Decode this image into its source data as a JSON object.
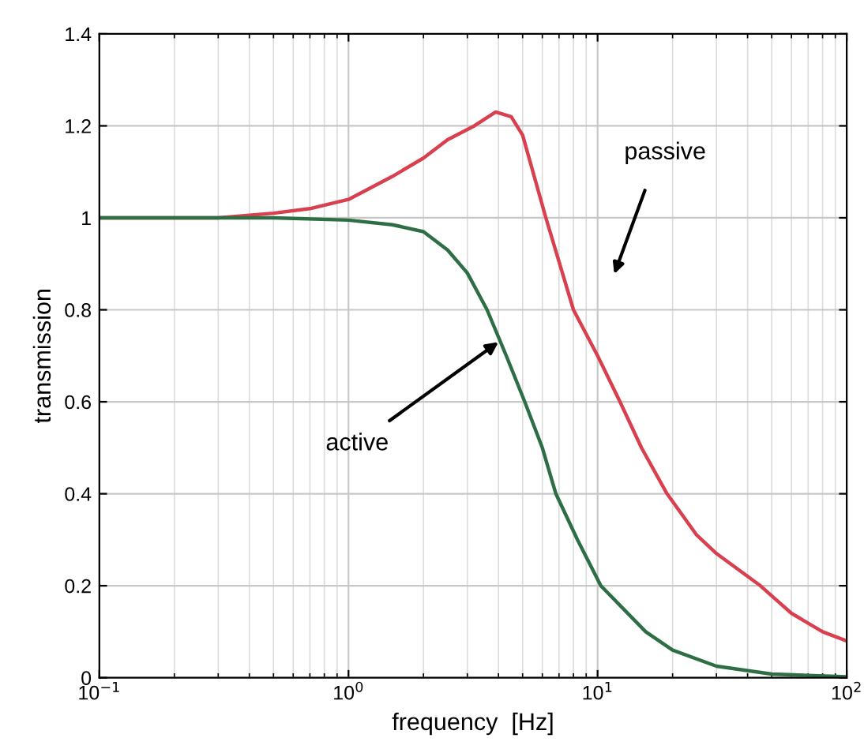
{
  "chart_data": {
    "type": "line",
    "xlabel": "frequency  [Hz]",
    "ylabel": "transmission",
    "log": "x",
    "grid": true,
    "marker": "none",
    "line_style": "solid",
    "xlim": [
      0.1,
      100
    ],
    "ylim": [
      0,
      1.4
    ],
    "xticks": [
      {
        "value": 0.1,
        "label": "10$^{−1}$"
      },
      {
        "value": 1,
        "label": "10$^{0}$"
      },
      {
        "value": 10,
        "label": "10$^{1}$"
      },
      {
        "value": 100,
        "label": "10$^{2}$"
      }
    ],
    "yticks": [
      0,
      0.2,
      0.4,
      0.6,
      0.8,
      1,
      1.2,
      1.4
    ],
    "series": [
      {
        "color": "#d9404f",
        "x": [
          0.1,
          0.3,
          0.5,
          0.7,
          1,
          1.5,
          2,
          2.5,
          3.2,
          3.9,
          4.5,
          5,
          6.2,
          8,
          10,
          12.3,
          15,
          19,
          25,
          30,
          45,
          60,
          80,
          100
        ],
        "values": [
          1,
          1,
          1.01,
          1.02,
          1.04,
          1.09,
          1.13,
          1.17,
          1.2,
          1.23,
          1.22,
          1.18,
          1.0,
          0.8,
          0.7,
          0.6,
          0.5,
          0.4,
          0.31,
          0.27,
          0.2,
          0.14,
          0.1,
          0.08
        ]
      },
      {
        "color": "#2e6e45",
        "x": [
          0.1,
          0.5,
          1,
          1.5,
          2,
          2.5,
          3,
          3.6,
          4.3,
          5.1,
          6,
          6.8,
          8.3,
          10.3,
          15.6,
          20,
          30,
          50,
          100
        ],
        "values": [
          1,
          1,
          0.995,
          0.985,
          0.97,
          0.93,
          0.88,
          0.8,
          0.7,
          0.6,
          0.5,
          0.4,
          0.3,
          0.2,
          0.1,
          0.06,
          0.025,
          0.008,
          0.002
        ]
      }
    ],
    "annotations": [
      "passive",
      {
        "text": "active",
        "x": 4.0,
        "y": 0.73
      }
    ]
  }
}
